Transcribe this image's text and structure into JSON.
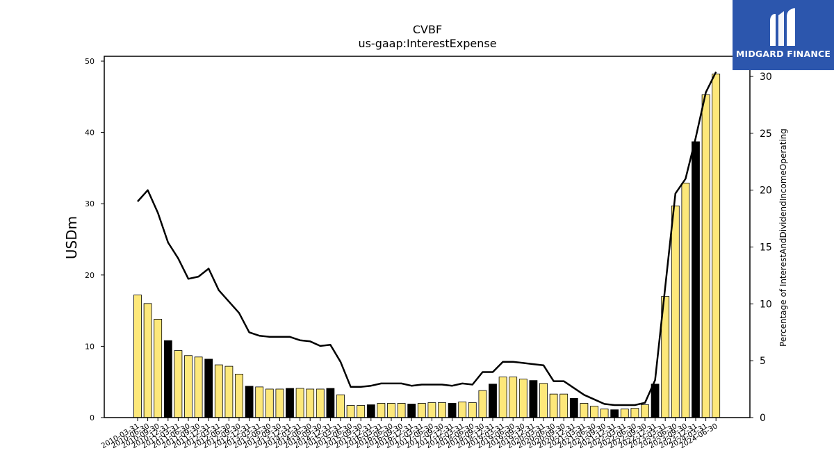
{
  "chart_data": {
    "type": "bar",
    "title": "CVBF",
    "subtitle": "us-gaap:InterestExpense",
    "ylabel": "USDm",
    "y2label": "Percentage of InterestAndDividendIncomeOperating",
    "ylim": [
      0,
      50
    ],
    "y2lim": [
      0,
      30
    ],
    "yticks": [
      0,
      10,
      20,
      30,
      40,
      50
    ],
    "y2ticks": [
      0,
      5,
      10,
      15,
      20,
      25,
      30
    ],
    "grid": false,
    "colors": {
      "bar_default": "#fde87a",
      "bar_highlight": "#000000",
      "line": "#000000"
    },
    "categories": [
      "2010-03-31",
      "2010-06-30",
      "2010-09-30",
      "2010-12-31",
      "2011-03-31",
      "2011-06-30",
      "2011-09-30",
      "2011-12-31",
      "2012-03-31",
      "2012-06-30",
      "2012-09-30",
      "2012-12-31",
      "2013-03-31",
      "2013-06-30",
      "2013-09-30",
      "2013-12-31",
      "2014-03-31",
      "2014-06-30",
      "2014-09-30",
      "2014-12-31",
      "2015-03-31",
      "2015-06-30",
      "2015-09-30",
      "2015-12-31",
      "2016-03-31",
      "2016-06-30",
      "2016-09-30",
      "2016-12-31",
      "2017-03-31",
      "2017-06-30",
      "2017-09-30",
      "2017-12-31",
      "2018-03-31",
      "2018-06-30",
      "2018-09-30",
      "2018-12-31",
      "2019-03-31",
      "2019-06-30",
      "2019-09-30",
      "2019-12-31",
      "2020-03-31",
      "2020-06-30",
      "2020-09-30",
      "2020-12-31",
      "2021-03-31",
      "2021-06-30",
      "2021-09-30",
      "2021-12-31",
      "2022-03-31",
      "2022-06-30",
      "2022-09-30",
      "2022-12-31",
      "2023-03-31",
      "2023-06-30",
      "2023-09-30",
      "2023-12-31",
      "2024-03-31",
      "2024-06-30"
    ],
    "series": [
      {
        "kind": "bar",
        "values": [
          17.2,
          16.0,
          13.8,
          10.8,
          9.4,
          8.7,
          8.5,
          8.2,
          7.4,
          7.2,
          6.1,
          4.4,
          4.3,
          4.0,
          4.0,
          4.1,
          4.1,
          4.0,
          4.0,
          4.1,
          3.2,
          1.7,
          1.7,
          1.8,
          2.0,
          2.0,
          2.0,
          1.9,
          2.0,
          2.1,
          2.1,
          2.0,
          2.2,
          2.1,
          3.8,
          4.7,
          5.7,
          5.7,
          5.4,
          5.2,
          4.8,
          3.3,
          3.3,
          2.7,
          2.0,
          1.6,
          1.2,
          1.1,
          1.2,
          1.3,
          1.8,
          4.7,
          17.0,
          29.7,
          32.9,
          38.7,
          45.3,
          48.2
        ],
        "highlight": [
          false,
          false,
          false,
          true,
          false,
          false,
          false,
          true,
          false,
          false,
          false,
          true,
          false,
          false,
          false,
          true,
          false,
          false,
          false,
          true,
          false,
          false,
          false,
          true,
          false,
          false,
          false,
          true,
          false,
          false,
          false,
          true,
          false,
          false,
          false,
          true,
          false,
          false,
          false,
          true,
          false,
          false,
          false,
          true,
          false,
          false,
          false,
          true,
          false,
          false,
          false,
          true,
          false,
          false,
          false,
          true,
          false,
          false
        ]
      },
      {
        "kind": "line",
        "axis": "right",
        "values": [
          19.0,
          20.0,
          18.0,
          15.4,
          14.0,
          12.2,
          12.4,
          13.1,
          11.2,
          10.2,
          9.2,
          7.5,
          7.2,
          7.1,
          7.1,
          7.1,
          6.8,
          6.7,
          6.3,
          6.4,
          4.9,
          2.7,
          2.7,
          2.8,
          3.0,
          3.0,
          3.0,
          2.8,
          2.9,
          2.9,
          2.9,
          2.8,
          3.0,
          2.9,
          4.0,
          4.0,
          4.9,
          4.9,
          4.8,
          4.7,
          4.6,
          3.2,
          3.2,
          2.6,
          2.0,
          1.6,
          1.2,
          1.1,
          1.1,
          1.1,
          1.3,
          3.3,
          11.5,
          19.7,
          21.0,
          24.6,
          28.6,
          30.4
        ]
      }
    ]
  },
  "logo": {
    "text": "MIDGARD FINANCE"
  }
}
